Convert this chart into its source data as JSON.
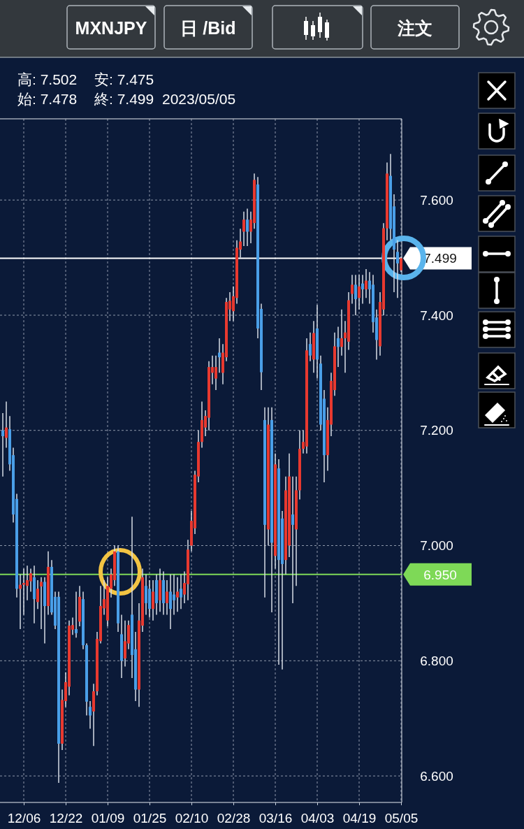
{
  "chart_data": {
    "type": "candlestick",
    "title": "MXNJPY",
    "annotations": [
      "日 /Bid",
      "注文",
      "高: 7.502",
      "安: 7.475",
      "始: 7.478",
      "終: 7.499",
      "2023/05/05"
    ],
    "categories": [
      null,
      null,
      null,
      null,
      null,
      null,
      "12/06",
      null,
      null,
      null,
      null,
      null,
      null,
      null,
      null,
      null,
      null,
      null,
      "12/22",
      null,
      null,
      null,
      null,
      null,
      null,
      null,
      null,
      null,
      null,
      null,
      "01/09",
      null,
      null,
      null,
      null,
      null,
      null,
      null,
      null,
      null,
      null,
      null,
      "01/25",
      null,
      null,
      null,
      null,
      null,
      null,
      null,
      null,
      null,
      null,
      null,
      "02/10",
      null,
      null,
      null,
      null,
      null,
      null,
      null,
      null,
      null,
      null,
      null,
      "02/28",
      null,
      null,
      null,
      null,
      null,
      null,
      null,
      null,
      null,
      null,
      null,
      "03/16",
      null,
      null,
      null,
      null,
      null,
      null,
      null,
      null,
      null,
      null,
      null,
      "04/03",
      null,
      null,
      null,
      null,
      null,
      null,
      null,
      null,
      null,
      null,
      null,
      "04/19",
      null,
      null,
      null,
      null,
      null,
      null,
      null,
      null,
      null,
      null,
      null,
      "05/05"
    ],
    "ohlc": [
      [
        7.2,
        7.23,
        7.12,
        7.19
      ],
      [
        7.187,
        7.25,
        7.17,
        7.205
      ],
      [
        7.202,
        7.225,
        7.13,
        7.141
      ],
      [
        7.157,
        7.17,
        7.04,
        7.054
      ],
      [
        7.081,
        7.09,
        6.91,
        6.925
      ],
      [
        6.925,
        6.95,
        6.855,
        6.932
      ],
      [
        6.932,
        6.96,
        6.88,
        6.935
      ],
      [
        6.93,
        6.965,
        6.905,
        6.94
      ],
      [
        6.938,
        6.96,
        6.92,
        6.952
      ],
      [
        6.945,
        6.965,
        6.865,
        6.907
      ],
      [
        6.902,
        6.94,
        6.89,
        6.925
      ],
      [
        6.929,
        6.945,
        6.855,
        6.937
      ],
      [
        6.937,
        6.945,
        6.83,
        6.895
      ],
      [
        6.895,
        6.99,
        6.88,
        6.963
      ],
      [
        6.963,
        6.975,
        6.88,
        6.884
      ],
      [
        6.911,
        6.92,
        6.855,
        6.861
      ],
      [
        6.911,
        6.92,
        6.588,
        6.656
      ],
      [
        6.656,
        6.75,
        6.645,
        6.732
      ],
      [
        6.73,
        6.78,
        6.72,
        6.763
      ],
      [
        6.755,
        6.87,
        6.74,
        6.861
      ],
      [
        6.854,
        6.875,
        6.845,
        6.862
      ],
      [
        6.855,
        6.92,
        6.84,
        6.848
      ],
      [
        6.868,
        6.93,
        6.86,
        6.911
      ],
      [
        6.907,
        6.92,
        6.82,
        6.827
      ],
      [
        6.827,
        6.83,
        6.705,
        6.729
      ],
      [
        6.72,
        6.73,
        6.682,
        6.705
      ],
      [
        6.712,
        6.76,
        6.652,
        6.747
      ],
      [
        6.747,
        6.85,
        6.74,
        6.838
      ],
      [
        6.834,
        6.93,
        6.83,
        6.895
      ],
      [
        6.891,
        6.94,
        6.88,
        6.907
      ],
      [
        6.87,
        6.945,
        6.86,
        6.93
      ],
      [
        6.925,
        6.96,
        6.91,
        6.95
      ],
      [
        6.94,
        7.0,
        6.93,
        6.99
      ],
      [
        6.99,
        7.0,
        6.85,
        6.865
      ],
      [
        6.846,
        6.88,
        6.77,
        6.8
      ],
      [
        6.804,
        6.87,
        6.79,
        6.834
      ],
      [
        6.83,
        6.87,
        6.82,
        6.862
      ],
      [
        6.88,
        7.05,
        6.77,
        6.81
      ],
      [
        6.82,
        6.85,
        6.73,
        6.75
      ],
      [
        6.75,
        6.9,
        6.72,
        6.87
      ],
      [
        6.861,
        6.96,
        6.85,
        6.945
      ],
      [
        6.93,
        6.95,
        6.88,
        6.9
      ],
      [
        6.925,
        6.94,
        6.875,
        6.89
      ],
      [
        6.89,
        6.94,
        6.87,
        6.92
      ],
      [
        6.94,
        6.95,
        6.88,
        6.9
      ],
      [
        6.905,
        6.96,
        6.885,
        6.94
      ],
      [
        6.94,
        6.955,
        6.88,
        6.9
      ],
      [
        6.9,
        6.94,
        6.88,
        6.92
      ],
      [
        6.92,
        6.95,
        6.855,
        6.89
      ],
      [
        6.915,
        6.95,
        6.88,
        6.905
      ],
      [
        6.91,
        6.945,
        6.885,
        6.92
      ],
      [
        6.925,
        6.95,
        6.89,
        6.91
      ],
      [
        6.915,
        6.955,
        6.9,
        6.935
      ],
      [
        6.933,
        7.01,
        6.905,
        6.993
      ],
      [
        7.0,
        7.06,
        6.99,
        7.043
      ],
      [
        7.03,
        7.13,
        7.02,
        7.123
      ],
      [
        7.12,
        7.2,
        7.11,
        7.18
      ],
      [
        7.18,
        7.25,
        7.17,
        7.218
      ],
      [
        7.205,
        7.235,
        7.19,
        7.225
      ],
      [
        7.222,
        7.32,
        7.2,
        7.31
      ],
      [
        7.3,
        7.33,
        7.28,
        7.31
      ],
      [
        7.29,
        7.33,
        7.27,
        7.31
      ],
      [
        7.335,
        7.36,
        7.3,
        7.327
      ],
      [
        7.3,
        7.35,
        7.28,
        7.335
      ],
      [
        7.327,
        7.43,
        7.32,
        7.423
      ],
      [
        7.41,
        7.44,
        7.39,
        7.425
      ],
      [
        7.407,
        7.45,
        7.39,
        7.433
      ],
      [
        7.43,
        7.53,
        7.42,
        7.517
      ],
      [
        7.514,
        7.55,
        7.5,
        7.528
      ],
      [
        7.545,
        7.58,
        7.52,
        7.566
      ],
      [
        7.566,
        7.585,
        7.52,
        7.545
      ],
      [
        7.545,
        7.58,
        7.525,
        7.566
      ],
      [
        7.56,
        7.646,
        7.55,
        7.635
      ],
      [
        7.627,
        7.64,
        7.36,
        7.377
      ],
      [
        7.411,
        7.42,
        7.27,
        7.301
      ],
      [
        7.218,
        7.24,
        6.91,
        7.036
      ],
      [
        7.028,
        7.24,
        7.0,
        7.21
      ],
      [
        7.218,
        7.24,
        6.884,
        7.005
      ],
      [
        6.982,
        7.16,
        6.96,
        7.141
      ],
      [
        7.134,
        7.15,
        6.793,
        6.975
      ],
      [
        7.047,
        7.06,
        6.785,
        6.968
      ],
      [
        6.975,
        7.12,
        6.95,
        7.096
      ],
      [
        7.0,
        7.16,
        6.98,
        7.12
      ],
      [
        7.054,
        7.12,
        6.9,
        7.036
      ],
      [
        7.028,
        7.12,
        6.93,
        7.096
      ],
      [
        7.096,
        7.2,
        7.08,
        7.168
      ],
      [
        7.168,
        7.2,
        7.16,
        7.18
      ],
      [
        7.172,
        7.36,
        7.16,
        7.339
      ],
      [
        7.35,
        7.37,
        7.32,
        7.33
      ],
      [
        7.323,
        7.39,
        7.3,
        7.369
      ],
      [
        7.377,
        7.418,
        7.29,
        7.323
      ],
      [
        7.316,
        7.33,
        7.2,
        7.21
      ],
      [
        7.255,
        7.27,
        7.11,
        7.157
      ],
      [
        7.157,
        7.24,
        7.13,
        7.218
      ],
      [
        7.21,
        7.3,
        7.19,
        7.286
      ],
      [
        7.27,
        7.37,
        7.26,
        7.346
      ],
      [
        7.36,
        7.38,
        7.31,
        7.345
      ],
      [
        7.345,
        7.41,
        7.33,
        7.36
      ],
      [
        7.36,
        7.39,
        7.3,
        7.37
      ],
      [
        7.354,
        7.44,
        7.34,
        7.426
      ],
      [
        7.437,
        7.47,
        7.42,
        7.453
      ],
      [
        7.453,
        7.47,
        7.4,
        7.428
      ],
      [
        7.43,
        7.47,
        7.41,
        7.45
      ],
      [
        7.455,
        7.47,
        7.42,
        7.445
      ],
      [
        7.445,
        7.48,
        7.43,
        7.46
      ],
      [
        7.46,
        7.475,
        7.42,
        7.445
      ],
      [
        7.453,
        7.47,
        7.37,
        7.388
      ],
      [
        7.396,
        7.41,
        7.323,
        7.357
      ],
      [
        7.346,
        7.44,
        7.33,
        7.423
      ],
      [
        7.41,
        7.56,
        7.4,
        7.551
      ],
      [
        7.551,
        7.665,
        7.53,
        7.646
      ],
      [
        7.642,
        7.68,
        7.53,
        7.55
      ],
      [
        7.589,
        7.61,
        7.44,
        7.514
      ],
      [
        7.51,
        7.53,
        7.43,
        7.49
      ],
      [
        7.478,
        7.502,
        7.475,
        7.499
      ]
    ],
    "colors": [
      "#4a9fe8",
      "#e8392f",
      "#4a9fe8",
      "#4a9fe8",
      "#4a9fe8",
      "#e8392f",
      "#e8392f",
      "#e8392f",
      "#e8392f",
      "#4a9fe8",
      "#e8392f",
      "#e8392f",
      "#4a9fe8",
      "#e8392f",
      "#4a9fe8",
      "#4a9fe8",
      "#4a9fe8",
      "#e8392f",
      "#e8392f",
      "#e8392f",
      "#e8392f",
      "#4a9fe8",
      "#e8392f",
      "#4a9fe8",
      "#4a9fe8",
      "#4a9fe8",
      "#e8392f",
      "#e8392f",
      "#e8392f",
      "#e8392f",
      "#e8392f",
      "#e8392f",
      "#e8392f",
      "#4a9fe8",
      "#4a9fe8",
      "#e8392f",
      "#e8392f",
      "#4a9fe8",
      "#4a9fe8",
      "#e8392f",
      "#e8392f",
      "#4a9fe8",
      "#4a9fe8",
      "#e8392f",
      "#4a9fe8",
      "#e8392f",
      "#4a9fe8",
      "#e8392f",
      "#4a9fe8",
      "#4a9fe8",
      "#e8392f",
      "#4a9fe8",
      "#e8392f",
      "#e8392f",
      "#e8392f",
      "#e8392f",
      "#e8392f",
      "#e8392f",
      "#e8392f",
      "#e8392f",
      "#e8392f",
      "#e8392f",
      "#4a9fe8",
      "#e8392f",
      "#e8392f",
      "#e8392f",
      "#e8392f",
      "#e8392f",
      "#e8392f",
      "#e8392f",
      "#4a9fe8",
      "#e8392f",
      "#e8392f",
      "#4a9fe8",
      "#4a9fe8",
      "#4a9fe8",
      "#e8392f",
      "#4a9fe8",
      "#e8392f",
      "#4a9fe8",
      "#4a9fe8",
      "#e8392f",
      "#e8392f",
      "#4a9fe8",
      "#e8392f",
      "#e8392f",
      "#e8392f",
      "#e8392f",
      "#4a9fe8",
      "#e8392f",
      "#4a9fe8",
      "#4a9fe8",
      "#4a9fe8",
      "#e8392f",
      "#e8392f",
      "#e8392f",
      "#4a9fe8",
      "#e8392f",
      "#e8392f",
      "#e8392f",
      "#e8392f",
      "#4a9fe8",
      "#e8392f",
      "#4a9fe8",
      "#e8392f",
      "#4a9fe8",
      "#4a9fe8",
      "#4a9fe8",
      "#e8392f",
      "#e8392f",
      "#e8392f",
      "#4a9fe8",
      "#4a9fe8",
      "#4a9fe8",
      "#e8392f"
    ],
    "ylim": [
      6.554,
      7.741
    ],
    "yticks": [
      {
        "value": 6.6,
        "label": "6.600"
      },
      {
        "value": 6.8,
        "label": "6.800"
      },
      {
        "value": 7.0,
        "label": "7.000"
      },
      {
        "value": 7.2,
        "label": "7.200"
      },
      {
        "value": 7.4,
        "label": "7.400"
      },
      {
        "value": 7.6,
        "label": "7.600"
      }
    ],
    "ref_lines": [
      {
        "axis": "y",
        "value": 7.499,
        "label": "7.499",
        "color": "#ffffff"
      },
      {
        "axis": "y",
        "value": 6.95,
        "label": "6.950",
        "color": "#7ed957"
      }
    ],
    "grid": true
  }
}
